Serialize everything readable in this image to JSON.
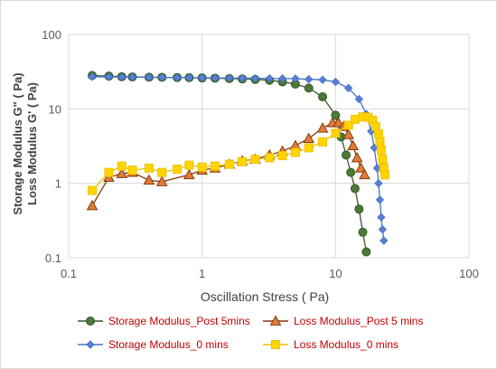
{
  "chart_data": {
    "type": "scatter",
    "title": "",
    "xlabel": "Oscillation Stress ( Pa)",
    "ylabel": [
      "Storage Modulus G\" ( Pa)",
      "Loss Modulus G' ( Pa)"
    ],
    "x_scale": "log",
    "y_scale": "log",
    "xlim": [
      0.1,
      100
    ],
    "ylim": [
      0.1,
      100
    ],
    "x_ticks": [
      "0.1",
      "1",
      "10",
      "100"
    ],
    "y_ticks": [
      "0.1",
      "1",
      "10",
      "100"
    ],
    "grid": true,
    "legend_position": "bottom",
    "series": [
      {
        "name": "Storage Modulus_Post 5mins",
        "marker": "circle",
        "color": "#38572a",
        "fill": "#4a7a36",
        "x": [
          0.15,
          0.2,
          0.25,
          0.3,
          0.4,
          0.5,
          0.65,
          0.8,
          1.0,
          1.25,
          1.6,
          2.0,
          2.5,
          3.2,
          4.0,
          5.0,
          6.3,
          8.0,
          10.0,
          11.0,
          12.0,
          13.0,
          14.0,
          15.0,
          16.0,
          17.0
        ],
        "y": [
          28,
          27.5,
          27,
          26.8,
          26.6,
          26.5,
          26.3,
          26.2,
          26,
          25.8,
          25.5,
          25.2,
          24.8,
          24.2,
          23,
          21.5,
          19,
          14.5,
          8.2,
          4.2,
          2.4,
          1.4,
          0.85,
          0.45,
          0.22,
          0.12
        ]
      },
      {
        "name": "Loss Modulus_Post 5 mins",
        "marker": "triangle",
        "color": "#843c0c",
        "fill": "#e07b39",
        "x": [
          0.15,
          0.2,
          0.25,
          0.3,
          0.4,
          0.5,
          0.8,
          1.0,
          1.25,
          1.6,
          2.0,
          2.5,
          3.2,
          4.0,
          5.0,
          6.3,
          8.0,
          9.5,
          10.5,
          11.5,
          12.5,
          13.5,
          14.5,
          15.5,
          16.5
        ],
        "y": [
          0.5,
          1.2,
          1.35,
          1.4,
          1.1,
          1.05,
          1.3,
          1.5,
          1.6,
          1.8,
          2.0,
          2.1,
          2.4,
          2.7,
          3.2,
          4.0,
          5.5,
          6.5,
          6.5,
          5.8,
          4.5,
          3.2,
          2.2,
          1.6,
          1.3
        ]
      },
      {
        "name": "Storage Modulus_0 mins",
        "marker": "diamond",
        "color": "#4472c4",
        "fill": "#5b7fd6",
        "x": [
          0.15,
          0.2,
          0.25,
          0.3,
          0.4,
          0.5,
          0.65,
          0.8,
          1.0,
          1.25,
          1.6,
          2.0,
          2.5,
          3.2,
          4.0,
          5.0,
          6.3,
          8.0,
          10.0,
          12.5,
          15.0,
          17.0,
          18.5,
          19.5,
          20.5,
          21.0,
          21.5,
          22.0,
          22.5,
          23.0
        ],
        "y": [
          27,
          26.8,
          26.7,
          26.6,
          26.5,
          26.4,
          26.3,
          26.2,
          26.1,
          26,
          25.9,
          25.8,
          25.7,
          25.6,
          25.5,
          25.4,
          25,
          24.5,
          23,
          19,
          13.5,
          8.5,
          5,
          3,
          1.6,
          1.0,
          0.6,
          0.35,
          0.24,
          0.17
        ]
      },
      {
        "name": "Loss Modulus_0 mins",
        "marker": "square",
        "color": "#f2c000",
        "fill": "#ffd500",
        "x": [
          0.15,
          0.2,
          0.25,
          0.3,
          0.4,
          0.5,
          0.65,
          0.8,
          1.0,
          1.25,
          1.6,
          2.0,
          2.5,
          3.2,
          4.0,
          5.0,
          6.3,
          8.0,
          10.0,
          12.5,
          14.0,
          16.0,
          17.5,
          19.0,
          20.0,
          21.0,
          21.5,
          22.0,
          22.5,
          23.0,
          23.5
        ],
        "y": [
          0.8,
          1.4,
          1.7,
          1.5,
          1.6,
          1.4,
          1.55,
          1.75,
          1.65,
          1.7,
          1.8,
          1.95,
          2.1,
          2.2,
          2.35,
          2.6,
          3.0,
          3.6,
          4.7,
          6.0,
          7.2,
          7.8,
          7.7,
          7.0,
          5.8,
          4.6,
          3.6,
          2.8,
          2.1,
          1.6,
          1.3
        ]
      }
    ]
  }
}
